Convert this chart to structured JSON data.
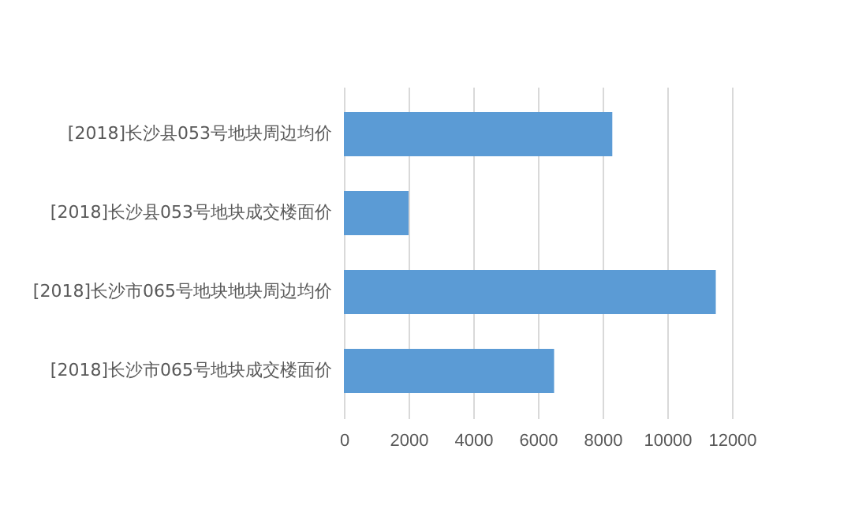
{
  "chart_data": {
    "type": "bar",
    "orientation": "horizontal",
    "categories": [
      "[2018]长沙县053号地块周边均价",
      "[2018]长沙县053号地块成交楼面价",
      "[2018]长沙市065号地块地块周边均价",
      "[2018]长沙市065号地块成交楼面价"
    ],
    "values": [
      8300,
      2000,
      11500,
      6500
    ],
    "color": "#5b9bd5",
    "xlim": [
      0,
      12000
    ],
    "xticks": [
      0,
      2000,
      4000,
      6000,
      8000,
      10000,
      12000
    ],
    "grid": "x"
  }
}
